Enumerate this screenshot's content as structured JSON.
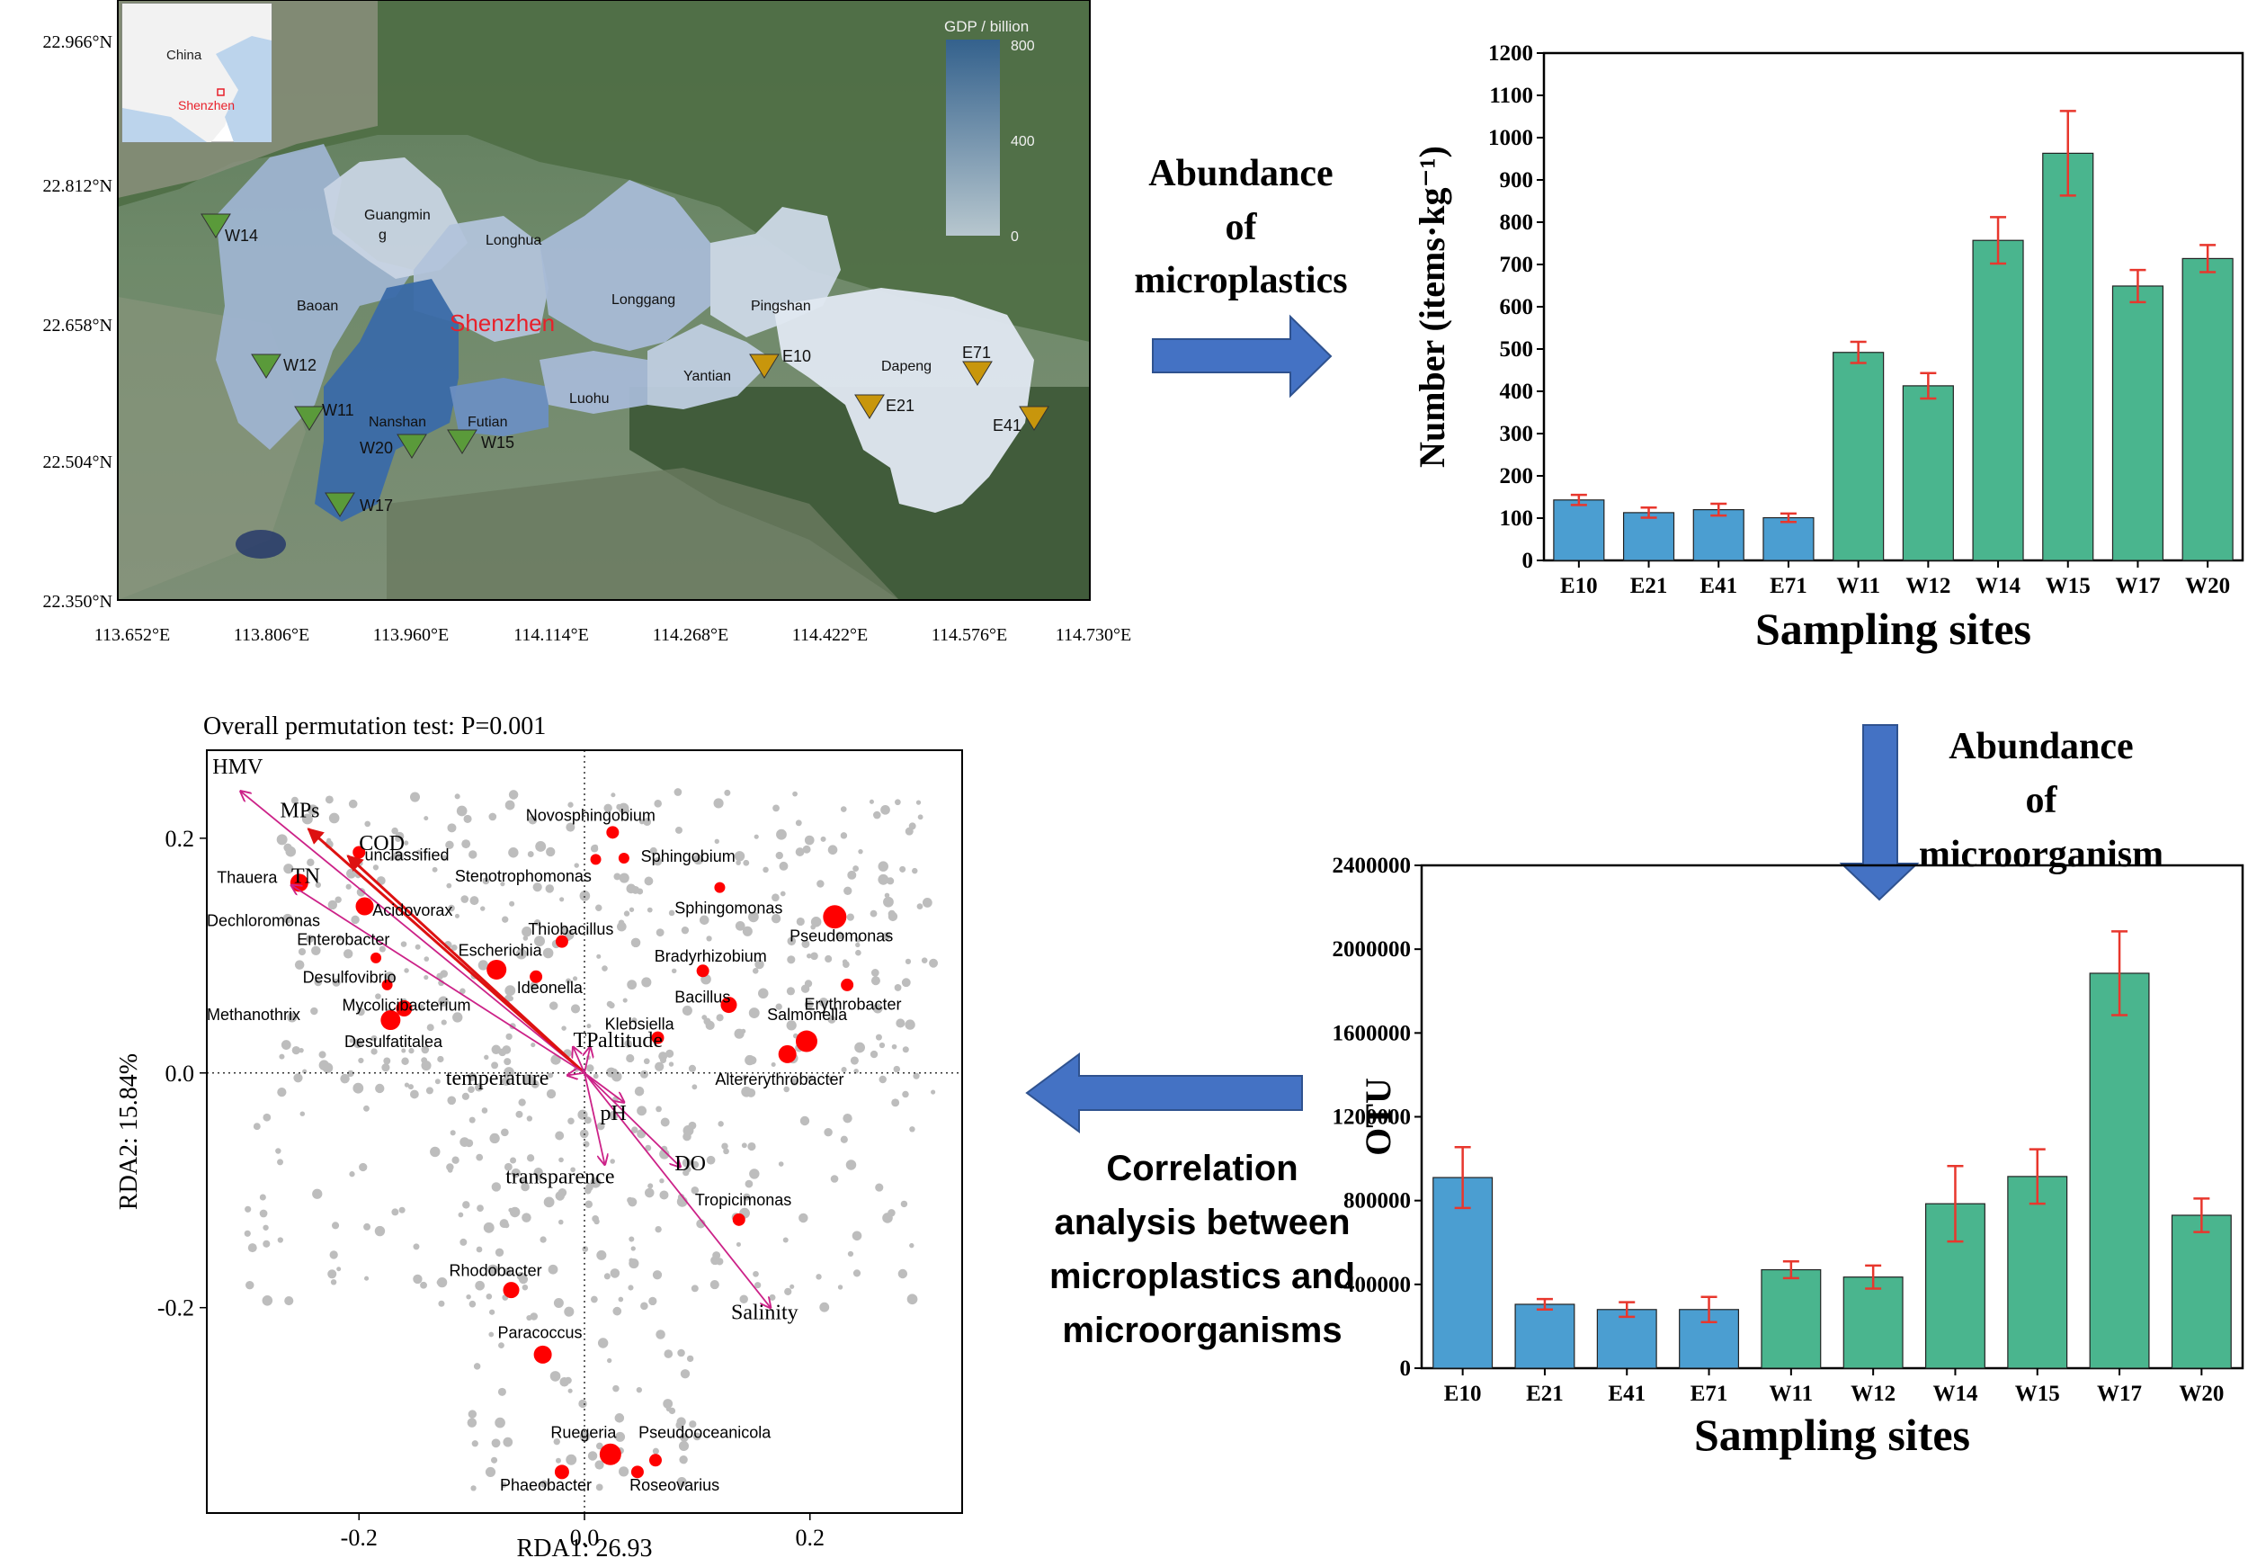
{
  "map": {
    "lat_labels": [
      "22.966°N",
      "22.812°N",
      "22.658°N",
      "22.504°N",
      "22.350°N"
    ],
    "lon_labels": [
      "113.652°E",
      "113.806°E",
      "113.960°E",
      "114.114°E",
      "114.268°E",
      "114.422°E",
      "114.576°E",
      "114.730°E"
    ],
    "inset_labels": {
      "country": "China",
      "city": "Shenzhen"
    },
    "legend": {
      "title": "GDP / billion",
      "ticks": [
        "800",
        "400",
        "0"
      ]
    },
    "city_label": "Shenzhen",
    "districts": [
      {
        "name": "Guangmin\ng"
      },
      {
        "name": "Baoan"
      },
      {
        "name": "Longhua"
      },
      {
        "name": "Longgang"
      },
      {
        "name": "Pingshan"
      },
      {
        "name": "Dapeng"
      },
      {
        "name": "Yantian"
      },
      {
        "name": "Luohu"
      },
      {
        "name": "Futian"
      },
      {
        "name": "Nanshan"
      }
    ],
    "sites": [
      {
        "name": "W14",
        "group": "W"
      },
      {
        "name": "W12",
        "group": "W"
      },
      {
        "name": "W11",
        "group": "W"
      },
      {
        "name": "W20",
        "group": "W"
      },
      {
        "name": "W15",
        "group": "W"
      },
      {
        "name": "W17",
        "group": "W"
      },
      {
        "name": "E10",
        "group": "E"
      },
      {
        "name": "E21",
        "group": "E"
      },
      {
        "name": "E71",
        "group": "E"
      },
      {
        "name": "E41",
        "group": "E"
      }
    ],
    "colors": {
      "west_marker": "#5a9a3a",
      "east_marker": "#c8960c",
      "legend_top": "#2f5f99",
      "legend_bottom": "#c9d6e6"
    }
  },
  "labels": {
    "abundance_mp": [
      "Abundance",
      "of",
      "microplastics"
    ],
    "abundance_mo": [
      "Abundance",
      "of",
      "microorganism"
    ],
    "correlation": [
      "Correlation",
      "analysis between",
      "microplastics and",
      "microorganisms"
    ]
  },
  "chart_data": [
    {
      "type": "bar",
      "categories": [
        "E10",
        "E21",
        "E41",
        "E71",
        "W11",
        "W12",
        "W14",
        "W15",
        "W17",
        "W20"
      ],
      "values": [
        143,
        113,
        120,
        101,
        492,
        413,
        757,
        963,
        649,
        714
      ],
      "errors": [
        12,
        12,
        14,
        10,
        25,
        30,
        55,
        100,
        38,
        32
      ],
      "groups": [
        "E",
        "E",
        "E",
        "E",
        "W",
        "W",
        "W",
        "W",
        "W",
        "W"
      ],
      "colors": {
        "E": "#4b9ed1",
        "W": "#4ab58e",
        "error": "#e8372d"
      },
      "xlabel": "Sampling sites",
      "ylabel": "Number (items·kg⁻¹)",
      "ylim": [
        0,
        1200
      ],
      "yticks": [
        0,
        100,
        200,
        300,
        400,
        500,
        600,
        700,
        800,
        900,
        1000,
        1100,
        1200
      ]
    },
    {
      "type": "bar",
      "categories": [
        "E10",
        "E21",
        "E41",
        "E71",
        "W11",
        "W12",
        "W14",
        "W15",
        "W17",
        "W20"
      ],
      "values": [
        910000,
        305000,
        280000,
        280000,
        470000,
        435000,
        785000,
        915000,
        1885000,
        730000
      ],
      "errors": [
        145000,
        25000,
        35000,
        60000,
        40000,
        55000,
        180000,
        130000,
        200000,
        80000
      ],
      "groups": [
        "E",
        "E",
        "E",
        "E",
        "W",
        "W",
        "W",
        "W",
        "W",
        "W"
      ],
      "colors": {
        "E": "#4b9ed1",
        "W": "#4ab58e",
        "error": "#e8372d"
      },
      "xlabel": "Sampling sites",
      "ylabel": "OTU",
      "ylim": [
        0,
        2400000
      ],
      "yticks": [
        0,
        400000,
        800000,
        1200000,
        1600000,
        2000000,
        2400000
      ]
    },
    {
      "type": "scatter",
      "title": "Overall permutation test: P=0.001",
      "xlabel": "RDA1: 26.93",
      "ylabel": "RDA2: 15.84%",
      "xlim": [
        -0.335,
        0.335
      ],
      "ylim": [
        -0.375,
        0.275
      ],
      "xticks": [
        -0.2,
        0.0,
        0.2
      ],
      "yticks": [
        -0.2,
        0.0,
        0.2
      ],
      "tick_labels": {
        "x": [
          "-0.2",
          "0.0",
          "0.2"
        ],
        "y": [
          "-0.2",
          "0.0",
          "0.2"
        ]
      },
      "arrows": [
        {
          "name": "HMV",
          "x": -0.305,
          "y": 0.24,
          "lx": -0.33,
          "ly": 0.255,
          "strong": false
        },
        {
          "name": "MPs",
          "x": -0.245,
          "y": 0.208,
          "lx": -0.27,
          "ly": 0.218,
          "strong": true
        },
        {
          "name": "COD",
          "x": -0.21,
          "y": 0.185,
          "lx": -0.2,
          "ly": 0.19,
          "strong": true
        },
        {
          "name": "TN",
          "x": -0.26,
          "y": 0.16,
          "lx": -0.26,
          "ly": 0.162,
          "strong": false
        },
        {
          "name": "TP",
          "x": -0.01,
          "y": 0.022,
          "lx": -0.01,
          "ly": 0.022,
          "strong": false
        },
        {
          "name": "altitude",
          "x": 0.005,
          "y": 0.022,
          "lx": 0.012,
          "ly": 0.022,
          "strong": false
        },
        {
          "name": "temperature",
          "x": -0.015,
          "y": -0.002,
          "lx": -0.123,
          "ly": -0.01,
          "strong": false
        },
        {
          "name": "pH",
          "x": 0.035,
          "y": -0.025,
          "lx": 0.014,
          "ly": -0.04,
          "strong": false
        },
        {
          "name": "DO",
          "x": 0.085,
          "y": -0.08,
          "lx": 0.08,
          "ly": -0.083,
          "strong": false
        },
        {
          "name": "transparence",
          "x": 0.018,
          "y": -0.078,
          "lx": -0.07,
          "ly": -0.094,
          "strong": false
        },
        {
          "name": "Salinity",
          "x": 0.165,
          "y": -0.2,
          "lx": 0.13,
          "ly": -0.21,
          "strong": false
        }
      ],
      "taxa": [
        {
          "name": "Novosphingobium",
          "x": 0.025,
          "y": 0.205,
          "s": 7,
          "lx": -0.052,
          "ly": 0.215
        },
        {
          "name": "Sphingobium",
          "x": 0.035,
          "y": 0.183,
          "s": 6,
          "lx": 0.05,
          "ly": 0.18
        },
        {
          "name": "",
          "x": 0.01,
          "y": 0.182,
          "s": 6
        },
        {
          "name": "unclassified",
          "x": -0.2,
          "y": 0.188,
          "s": 7,
          "lx": -0.195,
          "ly": 0.181
        },
        {
          "name": "Stenotrophomonas",
          "x": null,
          "y": null,
          "s": 0,
          "lx": -0.115,
          "ly": 0.163
        },
        {
          "name": "Sphingomonas",
          "x": 0.12,
          "y": 0.158,
          "s": 6,
          "lx": 0.08,
          "ly": 0.136
        },
        {
          "name": "Pseudomonas",
          "x": 0.222,
          "y": 0.133,
          "s": 13,
          "lx": 0.182,
          "ly": 0.112
        },
        {
          "name": "Thauera",
          "x": -0.253,
          "y": 0.162,
          "s": 10,
          "lx": -0.326,
          "ly": 0.162
        },
        {
          "name": "Acidovorax",
          "x": -0.195,
          "y": 0.142,
          "s": 10,
          "lx": -0.188,
          "ly": 0.134
        },
        {
          "name": "Dechloromonas",
          "x": null,
          "y": null,
          "s": 0,
          "lx": -0.335,
          "ly": 0.125
        },
        {
          "name": "Enterobacter",
          "x": -0.185,
          "y": 0.098,
          "s": 6,
          "lx": -0.255,
          "ly": 0.109
        },
        {
          "name": "Thiobacillus",
          "x": -0.02,
          "y": 0.112,
          "s": 7,
          "lx": -0.05,
          "ly": 0.118
        },
        {
          "name": "Bradyrhizobium",
          "x": 0.105,
          "y": 0.087,
          "s": 7,
          "lx": 0.062,
          "ly": 0.095
        },
        {
          "name": "Escherichia",
          "x": -0.078,
          "y": 0.088,
          "s": 11,
          "lx": -0.112,
          "ly": 0.1
        },
        {
          "name": "Desulfovibrio",
          "x": -0.175,
          "y": 0.075,
          "s": 6,
          "lx": -0.25,
          "ly": 0.077
        },
        {
          "name": "Ideonella",
          "x": -0.043,
          "y": 0.082,
          "s": 7,
          "lx": -0.06,
          "ly": 0.068
        },
        {
          "name": "Bacillus",
          "x": 0.128,
          "y": 0.058,
          "s": 9,
          "lx": 0.08,
          "ly": 0.06
        },
        {
          "name": "Erythrobacter",
          "x": 0.233,
          "y": 0.075,
          "s": 7,
          "lx": 0.195,
          "ly": 0.054
        },
        {
          "name": "Mycolicibacterium",
          "x": -0.16,
          "y": 0.055,
          "s": 9,
          "lx": -0.215,
          "ly": 0.053
        },
        {
          "name": "Methanothrix",
          "x": null,
          "y": null,
          "s": 0,
          "lx": -0.335,
          "ly": 0.045
        },
        {
          "name": "Desulfatitalea",
          "x": -0.172,
          "y": 0.045,
          "s": 11,
          "lx": -0.213,
          "ly": 0.022
        },
        {
          "name": "Klebsiella",
          "x": 0.065,
          "y": 0.03,
          "s": 7,
          "lx": 0.018,
          "ly": 0.037
        },
        {
          "name": "Salmonella",
          "x": 0.197,
          "y": 0.027,
          "s": 12,
          "lx": 0.162,
          "ly": 0.045
        },
        {
          "name": "",
          "x": 0.18,
          "y": 0.016,
          "s": 10
        },
        {
          "name": "Altererythrobacter",
          "x": null,
          "y": null,
          "s": 0,
          "lx": 0.116,
          "ly": -0.01
        },
        {
          "name": "Tropicimonas",
          "x": 0.137,
          "y": -0.125,
          "s": 7,
          "lx": 0.098,
          "ly": -0.113
        },
        {
          "name": "Rhodobacter",
          "x": -0.065,
          "y": -0.185,
          "s": 9,
          "lx": -0.12,
          "ly": -0.173
        },
        {
          "name": "Paracoccus",
          "x": -0.037,
          "y": -0.24,
          "s": 10,
          "lx": -0.077,
          "ly": -0.226
        },
        {
          "name": "Ruegeria",
          "x": 0.023,
          "y": -0.325,
          "s": 12,
          "lx": -0.03,
          "ly": -0.311
        },
        {
          "name": "Pseudooceanicola",
          "x": 0.063,
          "y": -0.33,
          "s": 7,
          "lx": 0.048,
          "ly": -0.311
        },
        {
          "name": "Phaeobacter",
          "x": -0.02,
          "y": -0.34,
          "s": 8,
          "lx": -0.075,
          "ly": -0.356
        },
        {
          "name": "Roseovarius",
          "x": 0.047,
          "y": -0.34,
          "s": 7,
          "lx": 0.04,
          "ly": -0.356
        }
      ],
      "colors": {
        "point": "#bdbdbd",
        "taxon": "#ff0000",
        "arrow": "#cc2288",
        "arrow_strong": "#dd1111"
      }
    }
  ]
}
